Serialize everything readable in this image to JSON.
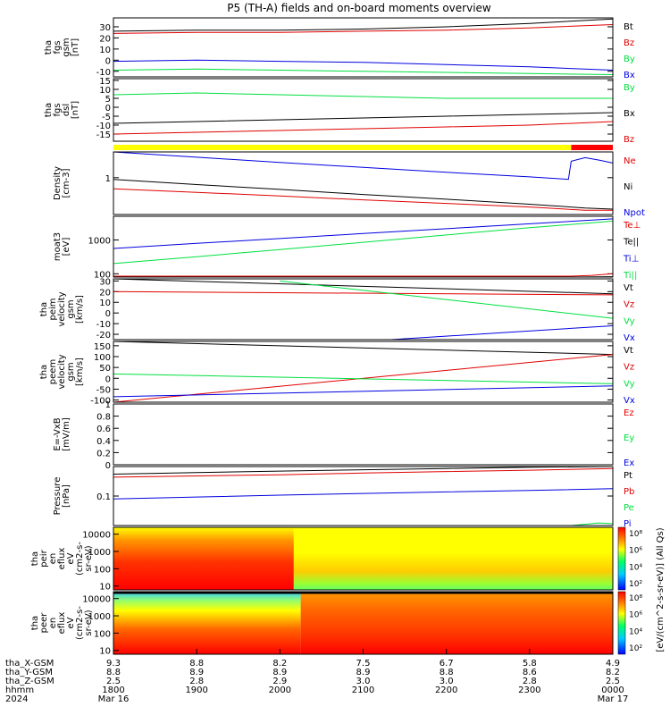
{
  "title": "P5 (TH-A) fields and on-board moments overview",
  "colors": {
    "black": "#000000",
    "red": "#e00000",
    "green": "#00e040",
    "blue": "#0000e0",
    "bar_yellow": "#ffff00",
    "bar_red": "#ff0000"
  },
  "chart_data": [
    {
      "type": "line",
      "panel": "fgs_gsm",
      "ylabel_lines": [
        "tha",
        "fgs",
        "gsm",
        "[nT]"
      ],
      "ylim": [
        -15,
        38
      ],
      "yticks": [
        -10,
        0,
        10,
        20,
        30
      ],
      "x_range_hhmm": [
        "1800",
        "0000"
      ],
      "series": [
        {
          "name": "Bt",
          "color": "#000000",
          "x": [
            0,
            60,
            120,
            180,
            240,
            300,
            360
          ],
          "y": [
            26,
            27,
            27,
            28,
            30,
            33,
            37
          ]
        },
        {
          "name": "Bz",
          "color": "#e00000",
          "x": [
            0,
            60,
            120,
            180,
            240,
            300,
            360
          ],
          "y": [
            24,
            25,
            25,
            26,
            27,
            29,
            32
          ]
        },
        {
          "name": "By",
          "color": "#00e040",
          "x": [
            0,
            60,
            120,
            180,
            240,
            300,
            360
          ],
          "y": [
            -9,
            -8,
            -9,
            -10,
            -11,
            -12,
            -13
          ]
        },
        {
          "name": "Bx",
          "color": "#0000e0",
          "x": [
            0,
            60,
            120,
            180,
            240,
            300,
            360
          ],
          "y": [
            -1,
            0,
            -1,
            -2,
            -4,
            -6,
            -9
          ]
        }
      ]
    },
    {
      "type": "line",
      "panel": "fgs_dsl",
      "ylabel_lines": [
        "tha",
        "fgs",
        "dsl",
        "[nT]"
      ],
      "ylim": [
        -19,
        16
      ],
      "yticks": [
        -15,
        -10,
        -5,
        0,
        5,
        10,
        15
      ],
      "series": [
        {
          "name": "By",
          "color": "#00e040",
          "x": [
            0,
            60,
            120,
            180,
            240,
            300,
            360
          ],
          "y": [
            7,
            8,
            7,
            6,
            5,
            5,
            5
          ]
        },
        {
          "name": "Bx",
          "color": "#000000",
          "x": [
            0,
            60,
            120,
            180,
            240,
            300,
            360
          ],
          "y": [
            -9,
            -8,
            -7,
            -6,
            -5,
            -4,
            -3
          ]
        },
        {
          "name": "Bz",
          "color": "#e00000",
          "x": [
            0,
            60,
            120,
            180,
            240,
            300,
            360
          ],
          "y": [
            -15,
            -14,
            -13,
            -12,
            -11,
            -10,
            -8
          ]
        }
      ]
    },
    {
      "type": "line",
      "panel": "density",
      "yscale": "log",
      "ylabel_lines": [
        "Density",
        "[cm-3]"
      ],
      "ylim": [
        0.1,
        5
      ],
      "yticks": [
        1
      ],
      "series": [
        {
          "name": "Ne",
          "color": "#e00000",
          "x": [
            0,
            60,
            120,
            180,
            240,
            300,
            340,
            360
          ],
          "y": [
            0.5,
            0.4,
            0.32,
            0.25,
            0.2,
            0.16,
            0.13,
            0.13
          ]
        },
        {
          "name": "Ni",
          "color": "#000000",
          "x": [
            0,
            60,
            120,
            180,
            240,
            300,
            340,
            360
          ],
          "y": [
            0.9,
            0.65,
            0.48,
            0.35,
            0.26,
            0.19,
            0.15,
            0.14
          ]
        },
        {
          "name": "Npot",
          "color": "#0000e0",
          "x": [
            0,
            60,
            120,
            180,
            240,
            300,
            328,
            330,
            340,
            350,
            360
          ],
          "y": [
            5,
            3.6,
            2.6,
            1.9,
            1.4,
            1.05,
            0.9,
            2.8,
            3.5,
            3.0,
            2.5
          ]
        }
      ]
    },
    {
      "type": "line",
      "panel": "temperature",
      "yscale": "log",
      "ylabel_lines": [
        "moat3",
        "[eV]"
      ],
      "ylim": [
        80,
        5000
      ],
      "yticks": [
        100,
        1000
      ],
      "series": [
        {
          "name": "Te⊥",
          "color": "#e00000",
          "x": [
            0,
            330,
            345,
            360
          ],
          "y": [
            85,
            85,
            90,
            100
          ]
        },
        {
          "name": "Te||",
          "color": "#000000",
          "x": [
            0,
            330,
            360
          ],
          "y": [
            80,
            80,
            82
          ]
        },
        {
          "name": "Ti⊥",
          "color": "#0000e0",
          "x": [
            0,
            60,
            120,
            180,
            240,
            300,
            360
          ],
          "y": [
            560,
            790,
            1100,
            1550,
            2150,
            3000,
            4200
          ]
        },
        {
          "name": "Ti||",
          "color": "#00e040",
          "x": [
            0,
            60,
            120,
            180,
            240,
            300,
            360
          ],
          "y": [
            200,
            320,
            520,
            850,
            1400,
            2300,
            3600
          ]
        }
      ]
    },
    {
      "type": "line",
      "panel": "peim_velocity",
      "ylabel_lines": [
        "tha",
        "peim",
        "velocity",
        "gsm",
        "[km/s]"
      ],
      "ylim": [
        -25,
        32
      ],
      "yticks": [
        -20,
        -10,
        0,
        10,
        20,
        30
      ],
      "series": [
        {
          "name": "Vt",
          "color": "#000000",
          "x": [
            0,
            360
          ],
          "y": [
            32,
            18
          ]
        },
        {
          "name": "Vz",
          "color": "#e00000",
          "x": [
            0,
            360
          ],
          "y": [
            20,
            17
          ]
        },
        {
          "name": "Vy",
          "color": "#00e040",
          "x": [
            120,
            360
          ],
          "y": [
            30,
            -5
          ]
        },
        {
          "name": "Vx",
          "color": "#0000e0",
          "x": [
            200,
            360
          ],
          "y": [
            -25,
            -12
          ]
        }
      ]
    },
    {
      "type": "line",
      "panel": "peem_velocity",
      "ylabel_lines": [
        "tha",
        "peem",
        "velocity",
        "gsm",
        "[km/s]"
      ],
      "ylim": [
        -110,
        170
      ],
      "yticks": [
        -100,
        -50,
        0,
        50,
        100,
        150
      ],
      "series": [
        {
          "name": "Vt",
          "color": "#000000",
          "x": [
            0,
            360
          ],
          "y": [
            170,
            110
          ]
        },
        {
          "name": "Vz",
          "color": "#e00000",
          "x": [
            0,
            360
          ],
          "y": [
            -110,
            110
          ]
        },
        {
          "name": "Vy",
          "color": "#00e040",
          "x": [
            0,
            360
          ],
          "y": [
            20,
            -25
          ]
        },
        {
          "name": "Vx",
          "color": "#0000e0",
          "x": [
            0,
            360
          ],
          "y": [
            -85,
            -35
          ]
        }
      ]
    },
    {
      "type": "line",
      "panel": "e_field",
      "ylabel_lines": [
        "E=-VxB",
        "[mV/m]"
      ],
      "ylim": [
        0,
        1
      ],
      "yticks": [
        0.0,
        0.2,
        0.4,
        0.6,
        0.8,
        1.0
      ],
      "series": [
        {
          "name": "Ez",
          "color": "#e00000",
          "x": [],
          "y": []
        },
        {
          "name": "Ey",
          "color": "#00e040",
          "x": [],
          "y": []
        },
        {
          "name": "Ex",
          "color": "#0000e0",
          "x": [],
          "y": []
        }
      ]
    },
    {
      "type": "line",
      "panel": "pressure",
      "yscale": "log",
      "ylabel_lines": [
        "Pressure",
        "[nPa]"
      ],
      "ylim": [
        0.02,
        0.5
      ],
      "yticks": [
        0.1
      ],
      "series": [
        {
          "name": "Pt",
          "color": "#000000",
          "x": [
            0,
            60,
            120,
            180,
            240,
            300,
            360
          ],
          "y": [
            0.33,
            0.36,
            0.39,
            0.42,
            0.45,
            0.48,
            0.5
          ]
        },
        {
          "name": "Pb",
          "color": "#e00000",
          "x": [
            0,
            60,
            120,
            180,
            240,
            300,
            360
          ],
          "y": [
            0.28,
            0.3,
            0.32,
            0.35,
            0.38,
            0.41,
            0.45
          ]
        },
        {
          "name": "Pe",
          "color": "#00e040",
          "x": [
            0,
            330,
            350,
            360
          ],
          "y": [
            0.02,
            0.02,
            0.023,
            0.022
          ]
        },
        {
          "name": "Pi",
          "color": "#0000e0",
          "x": [
            0,
            60,
            120,
            180,
            240,
            300,
            360
          ],
          "y": [
            0.085,
            0.095,
            0.105,
            0.115,
            0.125,
            0.135,
            0.15
          ]
        }
      ]
    },
    {
      "type": "heatmap",
      "panel": "peir",
      "ylabel_lines": [
        "tha",
        "peir",
        "en",
        "eflux",
        "eV",
        "(cm2-s-",
        "sr-eV)"
      ],
      "yticks": [
        10,
        100,
        1000,
        10000
      ],
      "zlabel": "[eV/(cm^2-s-sr-eV)] (All Qs)",
      "zticks": [
        "10²",
        "10⁴",
        "10⁶",
        "10⁸"
      ],
      "change_x": 130
    },
    {
      "type": "heatmap",
      "panel": "peer",
      "ylabel_lines": [
        "tha",
        "peer",
        "en",
        "eflux",
        "eV",
        "(cm2-s-",
        "sr-eV)"
      ],
      "yticks": [
        10,
        100,
        1000,
        10000
      ],
      "zlabel": "[eV/(cm^2-s-sr-eV)]",
      "zticks": [
        "10²",
        "10⁴",
        "10⁶",
        "10⁸"
      ],
      "change_x": 135
    }
  ],
  "x_axis": {
    "rows": [
      {
        "label": "tha_X-GSM",
        "values": [
          "9.3",
          "8.8",
          "8.2",
          "7.5",
          "6.7",
          "5.8",
          "4.9"
        ]
      },
      {
        "label": "tha_Y-GSM",
        "values": [
          "8.8",
          "8.9",
          "8.9",
          "8.9",
          "8.8",
          "8.6",
          "8.2"
        ]
      },
      {
        "label": "tha_Z-GSM",
        "values": [
          "2.5",
          "2.8",
          "2.9",
          "3.0",
          "3.0",
          "2.8",
          "2.5"
        ]
      },
      {
        "label": "hhmm",
        "values": [
          "1800",
          "1900",
          "2000",
          "2100",
          "2200",
          "2300",
          "0000"
        ]
      },
      {
        "label": "2024",
        "values": [
          "Mar 16",
          "",
          "",
          "",
          "",
          "",
          "Mar 17"
        ]
      }
    ]
  },
  "status_bar": {
    "yellow_until_x": 330
  }
}
